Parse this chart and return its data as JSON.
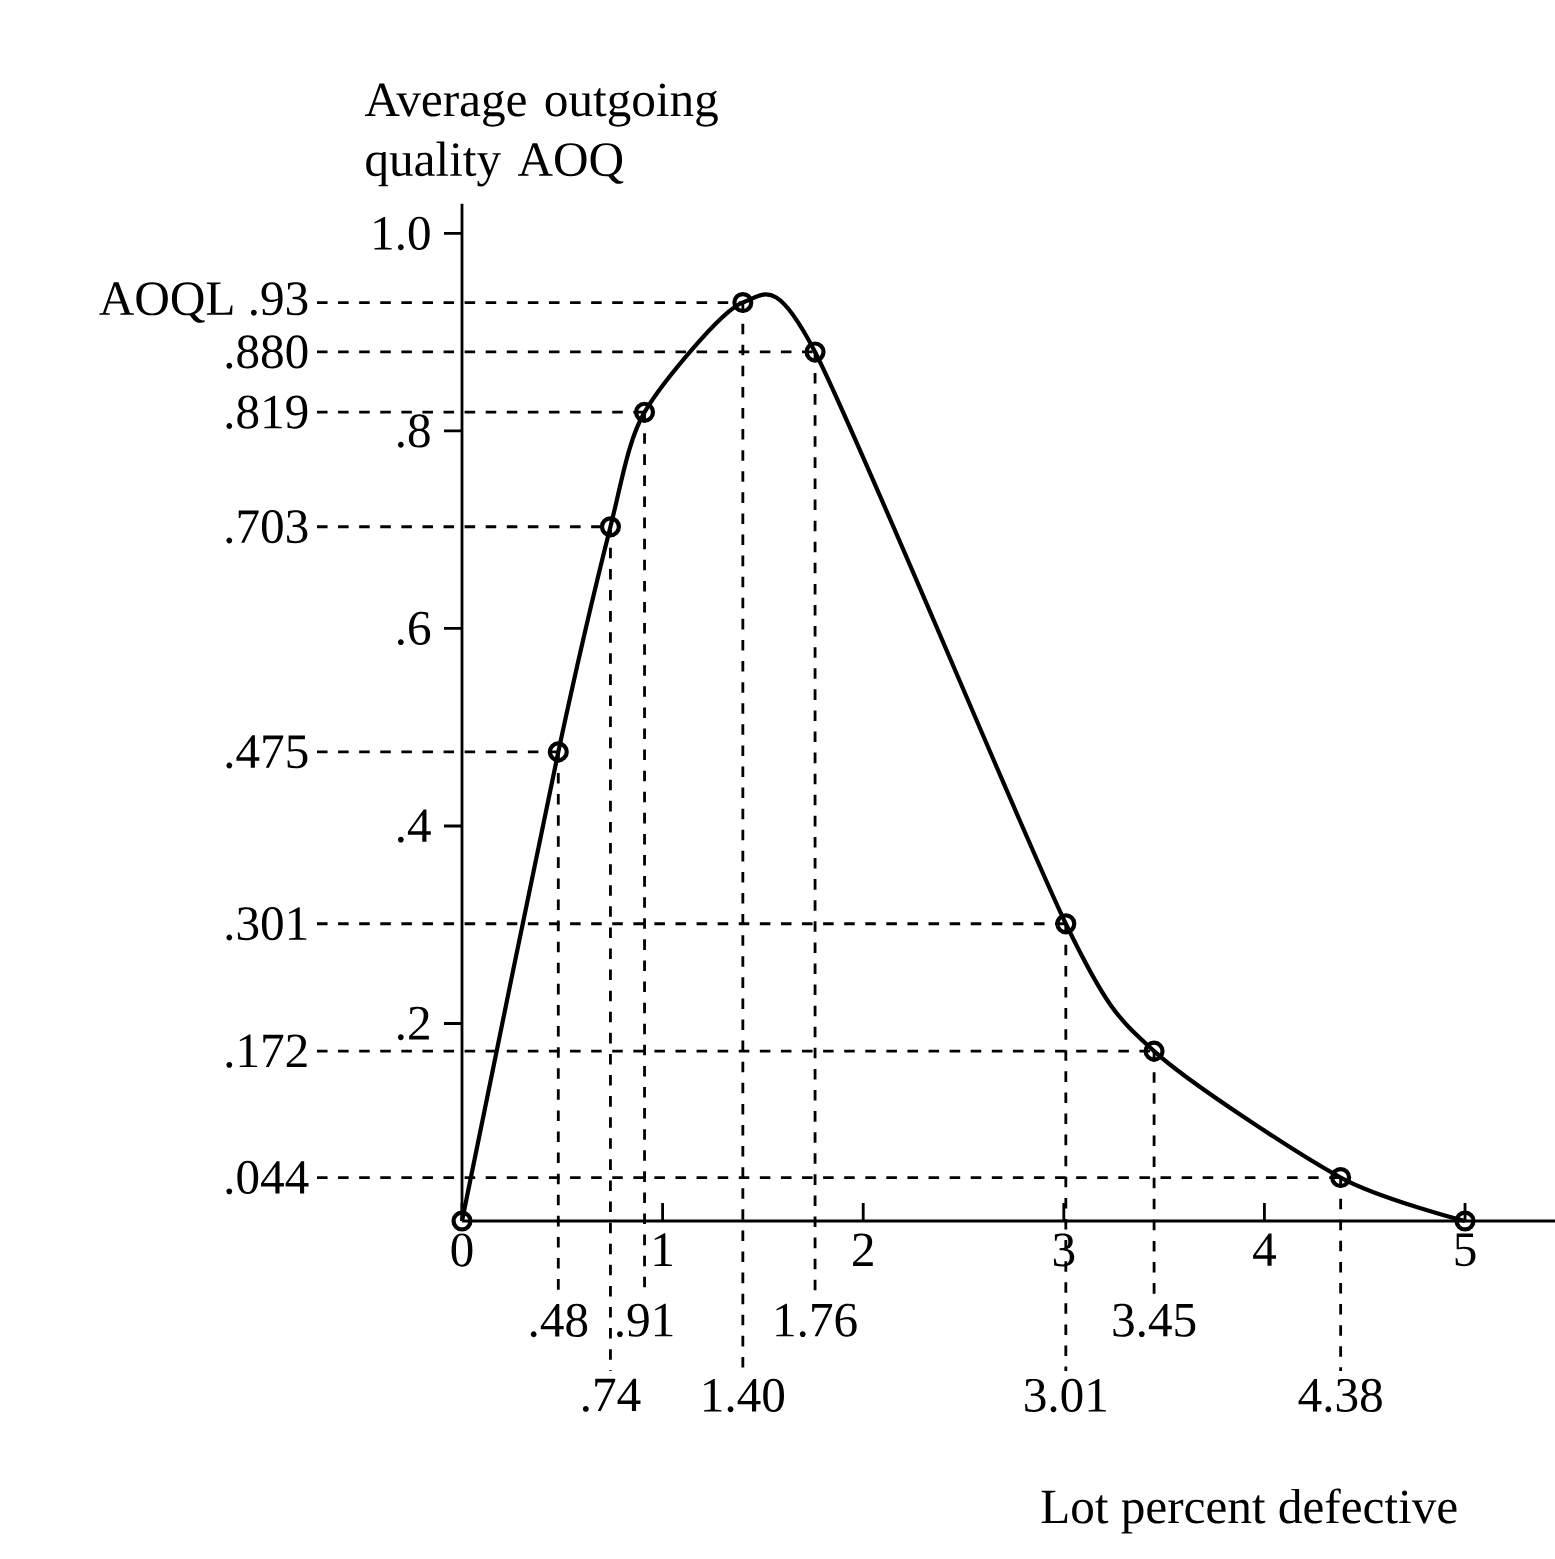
{
  "chart_data": {
    "type": "line",
    "xlabel": "Lot percent defective",
    "ylabel": "Average outgoing quality AOQ",
    "x": [
      0,
      0.48,
      0.74,
      0.91,
      1.4,
      1.76,
      3.01,
      3.45,
      4.38,
      5
    ],
    "values": [
      0,
      0.475,
      0.703,
      0.819,
      0.93,
      0.88,
      0.301,
      0.172,
      0.044,
      0
    ],
    "color": "#000000",
    "marker": "circle",
    "xlim": [
      0,
      5.45
    ],
    "ylim": [
      0,
      1.03
    ],
    "xticks": [
      0,
      1,
      2,
      3,
      4,
      5
    ],
    "yticks": [
      {
        "value": 0.2,
        "label": ".2"
      },
      {
        "value": 0.4,
        "label": ".4"
      },
      {
        "value": 0.6,
        "label": ".6"
      },
      {
        "value": 0.8,
        "label": ".8"
      },
      {
        "value": 1.0,
        "label": "1.0"
      }
    ],
    "ref_lines": [
      {
        "axis": "y",
        "value": 0.044,
        "label": ".044",
        "line_style": "dashed"
      },
      {
        "axis": "y",
        "value": 0.172,
        "label": ".172",
        "line_style": "dashed"
      },
      {
        "axis": "y",
        "value": 0.301,
        "label": ".301",
        "line_style": "dashed"
      },
      {
        "axis": "y",
        "value": 0.475,
        "label": ".475",
        "line_style": "dashed"
      },
      {
        "axis": "y",
        "value": 0.703,
        "label": ".703",
        "line_style": "dashed"
      },
      {
        "axis": "y",
        "value": 0.819,
        "label": ".819",
        "line_style": "dashed"
      },
      {
        "axis": "y",
        "value": 0.88,
        "label": ".880",
        "line_style": "dashed"
      },
      {
        "axis": "y",
        "value": 0.93,
        "label": "AOQL .93",
        "line_style": "dashed"
      },
      {
        "axis": "x",
        "value": 0.48,
        "label": ".48",
        "line_style": "dashed"
      },
      {
        "axis": "x",
        "value": 0.74,
        "label": ".74",
        "line_style": "dashed"
      },
      {
        "axis": "x",
        "value": 0.91,
        "label": ".91",
        "line_style": "dashed"
      },
      {
        "axis": "x",
        "value": 1.4,
        "label": "1.40",
        "line_style": "dashed"
      },
      {
        "axis": "x",
        "value": 1.76,
        "label": "1.76",
        "line_style": "dashed"
      },
      {
        "axis": "x",
        "value": 3.01,
        "label": "3.01",
        "line_style": "dashed"
      },
      {
        "axis": "x",
        "value": 3.45,
        "label": "3.45",
        "line_style": "dashed"
      },
      {
        "axis": "x",
        "value": 4.38,
        "label": "4.38",
        "line_style": "dashed"
      }
    ]
  }
}
